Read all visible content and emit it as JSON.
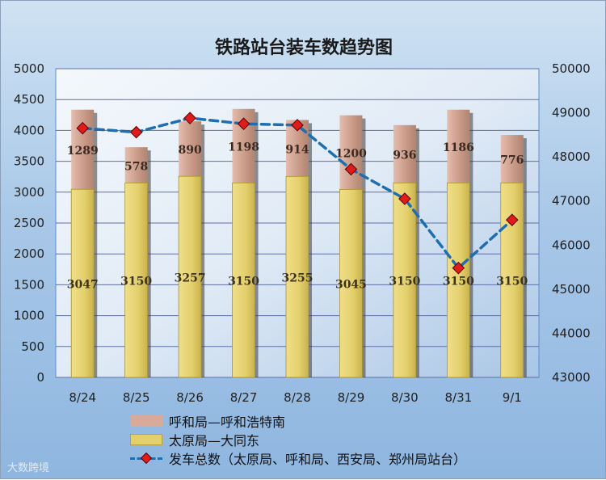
{
  "chart_data": {
    "type": "bar",
    "title": "铁路站台装车数趋势图",
    "categories": [
      "8/24",
      "8/25",
      "8/26",
      "8/27",
      "8/28",
      "8/29",
      "8/30",
      "8/31",
      "9/1"
    ],
    "series": [
      {
        "name": "太原局—大同东",
        "type": "bar",
        "axis": "left",
        "stack": "main",
        "values": [
          3047,
          3150,
          3257,
          3150,
          3255,
          3045,
          3150,
          3150,
          3150
        ],
        "color": "#e3cf6b"
      },
      {
        "name": "呼和局—呼和浩特南",
        "type": "bar",
        "axis": "left",
        "stack": "main",
        "values": [
          1289,
          578,
          890,
          1198,
          914,
          1200,
          936,
          1186,
          776
        ],
        "color": "#d9a99a"
      },
      {
        "name": "发车总数（太原局、呼和局、西安局、郑州局站台）",
        "type": "line",
        "axis": "right",
        "values": [
          48650,
          48560,
          48880,
          48750,
          48720,
          47720,
          47050,
          45480,
          46570
        ],
        "color": "#1f6eb0"
      }
    ],
    "y_left": {
      "min": 0,
      "max": 5000,
      "ticks": [
        "0",
        "500",
        "1000",
        "1500",
        "2000",
        "2500",
        "3000",
        "3500",
        "4000",
        "4500",
        "5000"
      ]
    },
    "y_right": {
      "min": 43000,
      "max": 50000,
      "ticks": [
        "43000",
        "44000",
        "45000",
        "46000",
        "47000",
        "48000",
        "49000",
        "50000"
      ]
    },
    "grid": true,
    "legend_position": "bottom"
  },
  "legend": [
    {
      "label": "呼和局—呼和浩特南"
    },
    {
      "label": "太原局—大同东"
    },
    {
      "label": "发车总数（太原局、呼和局、西安局、郑州局站台）"
    }
  ],
  "watermark": "大数跨境"
}
